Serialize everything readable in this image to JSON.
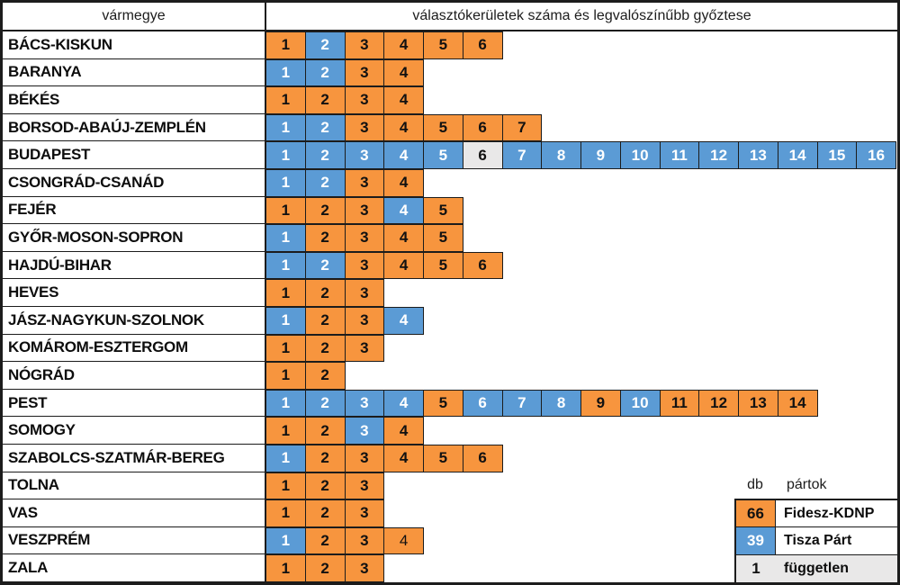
{
  "chart_data": {
    "type": "table",
    "title": "választókerületek száma és legvalószínűbb győztese",
    "row_header": "vármegye",
    "parties": {
      "F": {
        "name": "Fidesz-KDNP",
        "color": "#F7953E",
        "text_color": "#111111"
      },
      "T": {
        "name": "Tisza Párt",
        "color": "#5B9BD5",
        "text_color": "#FFFFFF"
      },
      "I": {
        "name": "független",
        "color": "#E9E8E8",
        "text_color": "#111111"
      }
    },
    "rows": [
      {
        "county": "BÁCS-KISKUN",
        "winners": [
          "F",
          "T",
          "F",
          "F",
          "F",
          "F"
        ]
      },
      {
        "county": "BARANYA",
        "winners": [
          "T",
          "T",
          "F",
          "F"
        ]
      },
      {
        "county": "BÉKÉS",
        "winners": [
          "F",
          "F",
          "F",
          "F"
        ]
      },
      {
        "county": "BORSOD-ABAÚJ-ZEMPLÉN",
        "winners": [
          "T",
          "T",
          "F",
          "F",
          "F",
          "F",
          "F"
        ]
      },
      {
        "county": "BUDAPEST",
        "winners": [
          "T",
          "T",
          "T",
          "T",
          "T",
          "I",
          "T",
          "T",
          "T",
          "T",
          "T",
          "T",
          "T",
          "T",
          "T",
          "T"
        ]
      },
      {
        "county": "CSONGRÁD-CSANÁD",
        "winners": [
          "T",
          "T",
          "F",
          "F"
        ]
      },
      {
        "county": "FEJÉR",
        "winners": [
          "F",
          "F",
          "F",
          "T",
          "F"
        ]
      },
      {
        "county": "GYŐR-MOSON-SOPRON",
        "winners": [
          "T",
          "F",
          "F",
          "F",
          "F"
        ]
      },
      {
        "county": "HAJDÚ-BIHAR",
        "winners": [
          "T",
          "T",
          "F",
          "F",
          "F",
          "F"
        ]
      },
      {
        "county": "HEVES",
        "winners": [
          "F",
          "F",
          "F"
        ]
      },
      {
        "county": "JÁSZ-NAGYKUN-SZOLNOK",
        "winners": [
          "T",
          "F",
          "F",
          "T"
        ]
      },
      {
        "county": "KOMÁROM-ESZTERGOM",
        "winners": [
          "F",
          "F",
          "F"
        ]
      },
      {
        "county": "NÓGRÁD",
        "winners": [
          "F",
          "F"
        ]
      },
      {
        "county": "PEST",
        "winners": [
          "T",
          "T",
          "T",
          "T",
          "F",
          "T",
          "T",
          "T",
          "F",
          "T",
          "F",
          "F",
          "F",
          "F"
        ]
      },
      {
        "county": "SOMOGY",
        "winners": [
          "F",
          "F",
          "T",
          "F"
        ]
      },
      {
        "county": "SZABOLCS-SZATMÁR-BEREG",
        "winners": [
          "T",
          "F",
          "F",
          "F",
          "F",
          "F"
        ]
      },
      {
        "county": "TOLNA",
        "winners": [
          "F",
          "F",
          "F"
        ]
      },
      {
        "county": "VAS",
        "winners": [
          "F",
          "F",
          "F"
        ]
      },
      {
        "county": "VESZPRÉM",
        "winners": [
          "T",
          "F",
          "F",
          "F"
        ],
        "normal_weight_cells": [
          4
        ]
      },
      {
        "county": "ZALA",
        "winners": [
          "F",
          "F",
          "F"
        ]
      }
    ],
    "totals": {
      "F": 66,
      "T": 39,
      "I": 1
    },
    "legend": {
      "count_header": "db",
      "party_header": "pártok",
      "items": [
        {
          "count": "66",
          "party": "F",
          "label": "Fidesz-KDNP",
          "row_bg": "#FFFFFF",
          "divider": true
        },
        {
          "count": "39",
          "party": "T",
          "label": "Tisza Párt",
          "row_bg": "#FFFFFF",
          "divider": true
        },
        {
          "count": "1",
          "party": "I",
          "label": "független",
          "row_bg": "#E9E8E8",
          "divider": false
        }
      ]
    }
  }
}
